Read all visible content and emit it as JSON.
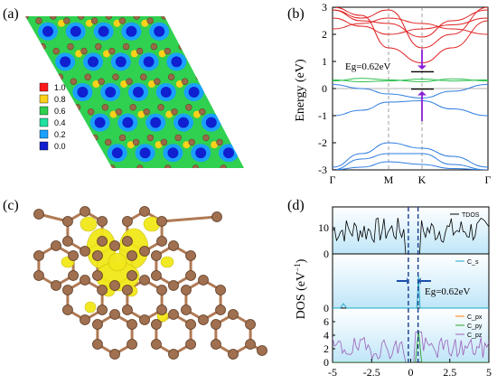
{
  "panels": {
    "a": "(a)",
    "b": "(b)",
    "c": "(c)",
    "d": "(d)"
  },
  "colorbar": {
    "labels": [
      "1.0",
      "0.8",
      "0.6",
      "0.4",
      "0.2",
      "0.0"
    ],
    "colors": [
      "#ff1a1a",
      "#ffd11a",
      "#30d050",
      "#20e0a0",
      "#1aa0ff",
      "#1020d0"
    ]
  },
  "colors": {
    "conduction": "#e02020",
    "valence": "#2f7de0",
    "flat_band": "#2fc050",
    "arrow": "#8a1ed6",
    "atom": "#a07050",
    "bond": "#b07a55",
    "orbital": "#f2e81a",
    "tdos": "#000000",
    "cs": "#17a8c8",
    "cpx": "#ff7f0e",
    "cpy": "#2ca02c",
    "cpz": "#9c5fb8",
    "dos_bg": "#bfe6f8"
  },
  "band": {
    "ylabel": "Energy (eV)",
    "yticks": [
      "3",
      "2",
      "1",
      "0",
      "-1",
      "-2",
      "-3"
    ],
    "xticks": [
      "Γ",
      "M",
      "K",
      "Γ"
    ],
    "gap_label": "Eg=0.62eV"
  },
  "dos": {
    "ylabel_main": "DOS",
    "ylabel_unit": "(eV",
    "ylabel_exp": "−1",
    "ylabel_close": ")",
    "xticks": [
      "-5",
      "-2.5",
      "0",
      "2.5",
      "5"
    ],
    "top_yticks": [
      "10",
      "0"
    ],
    "mid_yticks": [
      "0"
    ],
    "bot_yticks": [
      "6",
      "4",
      "2",
      "0"
    ],
    "legend_top": "TDOS",
    "legend_mid": "C_s",
    "legend_bot": [
      "C_px",
      "C_py",
      "C_pz"
    ],
    "gap_label": "Eg=0.62eV"
  }
}
